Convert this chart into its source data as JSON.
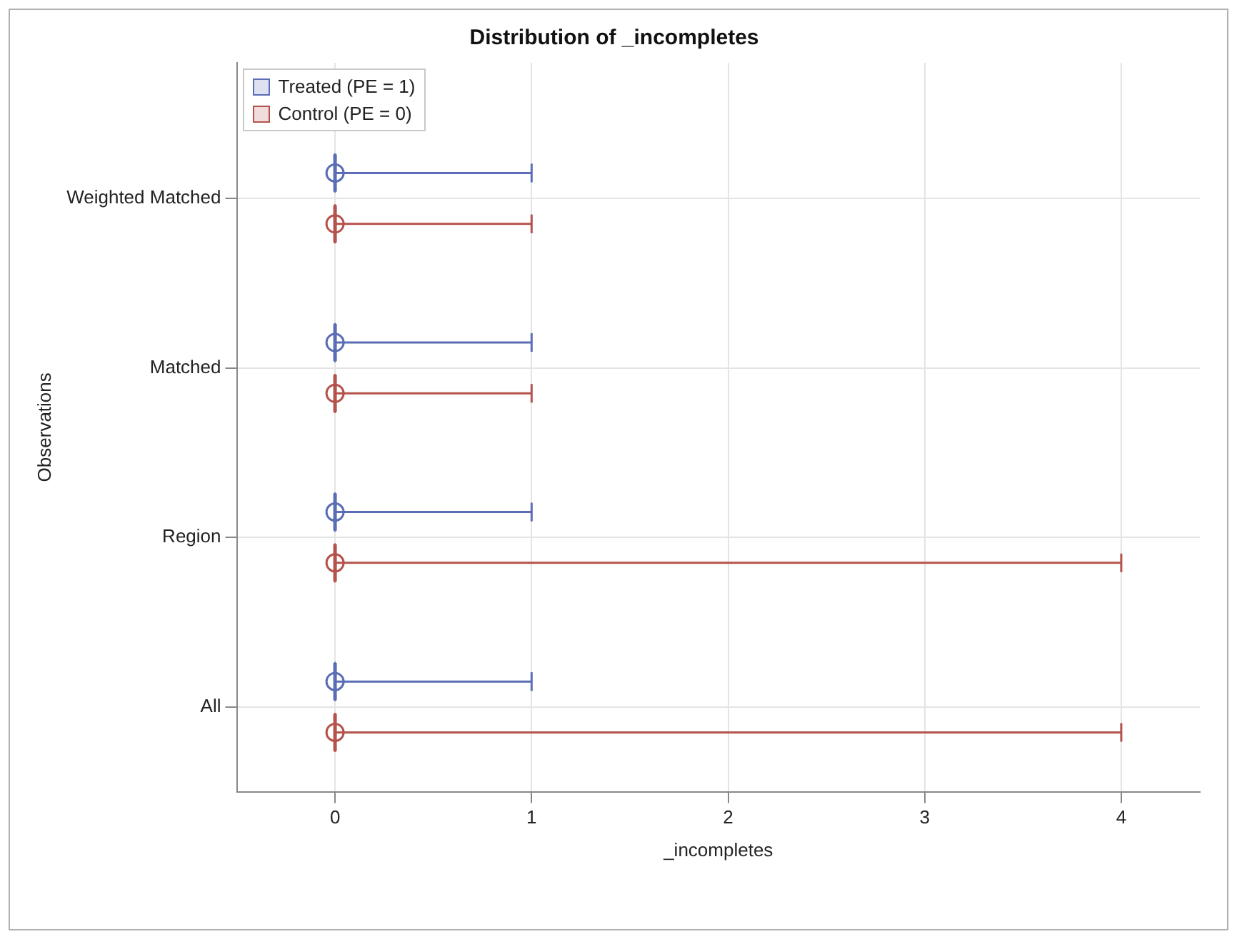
{
  "chart_data": {
    "type": "box",
    "orientation": "horizontal",
    "title": "Distribution of _incompletes",
    "xlabel": "_incompletes",
    "ylabel": "Observations",
    "categories": [
      "Weighted Matched",
      "Matched",
      "Region",
      "All"
    ],
    "series": [
      {
        "name": "Treated (PE = 1)",
        "color": "#5a6db5",
        "boxes": [
          {
            "low": 0,
            "q1": 0,
            "median": 0,
            "q3": 0,
            "high": 1,
            "mean": 0
          },
          {
            "low": 0,
            "q1": 0,
            "median": 0,
            "q3": 0,
            "high": 1,
            "mean": 0
          },
          {
            "low": 0,
            "q1": 0,
            "median": 0,
            "q3": 0,
            "high": 1,
            "mean": 0
          },
          {
            "low": 0,
            "q1": 0,
            "median": 0,
            "q3": 0,
            "high": 1,
            "mean": 0
          }
        ]
      },
      {
        "name": "Control (PE = 0)",
        "color": "#b5524b",
        "boxes": [
          {
            "low": 0,
            "q1": 0,
            "median": 0,
            "q3": 0,
            "high": 1,
            "mean": 0
          },
          {
            "low": 0,
            "q1": 0,
            "median": 0,
            "q3": 0,
            "high": 1,
            "mean": 0
          },
          {
            "low": 0,
            "q1": 0,
            "median": 0,
            "q3": 0,
            "high": 4,
            "mean": 0
          },
          {
            "low": 0,
            "q1": 0,
            "median": 0,
            "q3": 0,
            "high": 4,
            "mean": 0
          }
        ]
      }
    ],
    "xlim": [
      -0.5,
      4.4
    ],
    "xticks": [
      0,
      1,
      2,
      3,
      4
    ],
    "grid": true,
    "legend": "top left"
  }
}
